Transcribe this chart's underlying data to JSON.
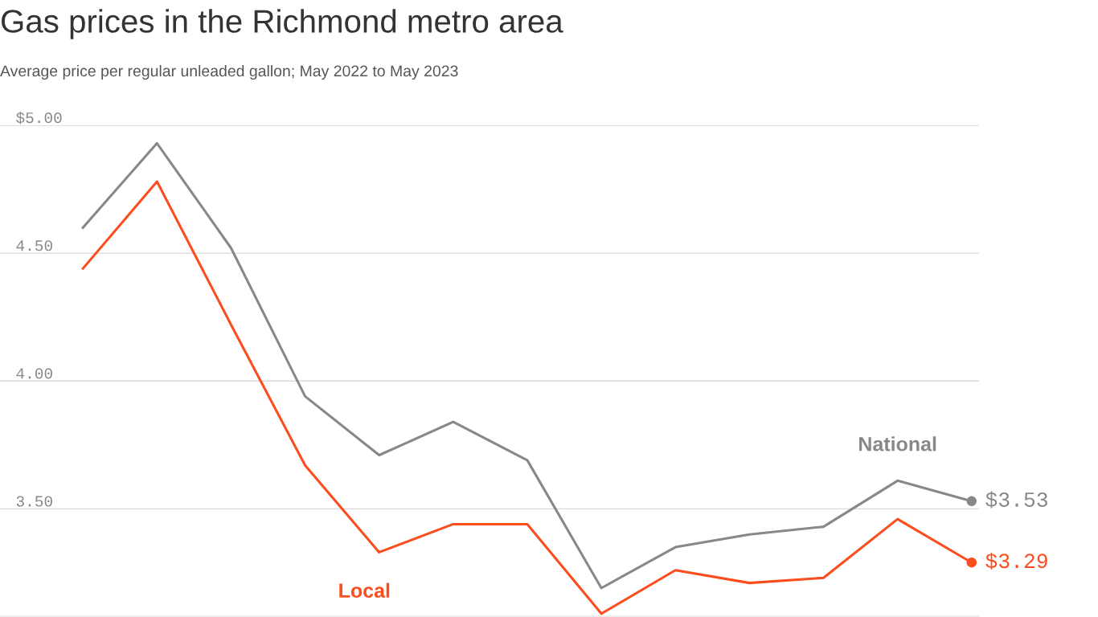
{
  "chart_data": {
    "type": "line",
    "title": "Gas prices in the Richmond metro area",
    "subtitle": "Average price per regular unleaded gallon; May 2022 to May 2023",
    "categories": [
      null,
      null,
      null,
      null,
      null,
      null,
      null,
      null,
      null,
      null,
      null,
      null,
      null
    ],
    "series": [
      {
        "name": "National",
        "color": "#888888",
        "values": [
          4.6,
          4.93,
          4.52,
          3.94,
          3.71,
          3.84,
          3.69,
          3.19,
          3.35,
          3.4,
          3.43,
          3.61,
          3.53
        ],
        "value_labels": [
          null,
          null,
          null,
          null,
          null,
          null,
          null,
          null,
          null,
          null,
          null,
          null,
          "$3.53"
        ]
      },
      {
        "name": "Local",
        "color": "#fb4d1d",
        "values": [
          4.44,
          4.78,
          4.22,
          3.67,
          3.33,
          3.44,
          3.44,
          3.09,
          3.26,
          3.21,
          3.23,
          3.46,
          3.29
        ],
        "value_labels": [
          null,
          null,
          null,
          null,
          null,
          null,
          null,
          null,
          null,
          null,
          null,
          null,
          "$3.29"
        ]
      }
    ],
    "ylim": [
      3.08,
      5.0
    ],
    "yticks": [
      {
        "value": 5,
        "label": "$5.00"
      },
      {
        "value": 4.5,
        "label": "4.50"
      },
      {
        "value": 4,
        "label": "4.00"
      },
      {
        "value": 3.5,
        "label": "3.50"
      }
    ],
    "grid": "y",
    "legend": false,
    "marker": "none",
    "line_style": "solid"
  }
}
